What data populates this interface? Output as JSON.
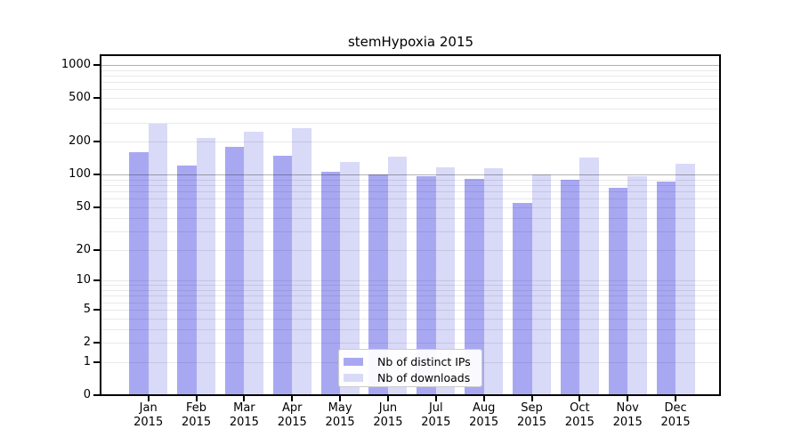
{
  "title": "stemHypoxia 2015",
  "legend": {
    "position": "lower center",
    "items": [
      {
        "label": "Nb of distinct IPs",
        "color": "#a8a8f2"
      },
      {
        "label": "Nb of downloads",
        "color": "#d9d9f8"
      }
    ]
  },
  "chart_data": {
    "type": "bar",
    "title": "stemHypoxia 2015",
    "categories": [
      "Jan",
      "Feb",
      "Mar",
      "Apr",
      "May",
      "Jun",
      "Jul",
      "Aug",
      "Sep",
      "Oct",
      "Nov",
      "Dec"
    ],
    "x_tick_second_line": "2015",
    "series": [
      {
        "name": "Nb of distinct IPs",
        "color": "#a8a8f2",
        "values": [
          160,
          122,
          178,
          150,
          107,
          101,
          97,
          92,
          55,
          90,
          76,
          86
        ]
      },
      {
        "name": "Nb of downloads",
        "color": "#d9d9f8",
        "values": [
          290,
          215,
          245,
          265,
          130,
          146,
          117,
          114,
          100,
          142,
          97,
          126
        ]
      }
    ],
    "yscale": "symlog-log1p",
    "y_ticks": [
      1000,
      500,
      200,
      100,
      50,
      20,
      10,
      5,
      2,
      1,
      0
    ],
    "ylim": [
      0,
      1250
    ],
    "grid": true,
    "gridline_minor_color": "rgba(0,0,0,0.085)",
    "gridline_major_color": "rgba(0,0,0,0.30)",
    "legend_position": "lower center"
  }
}
